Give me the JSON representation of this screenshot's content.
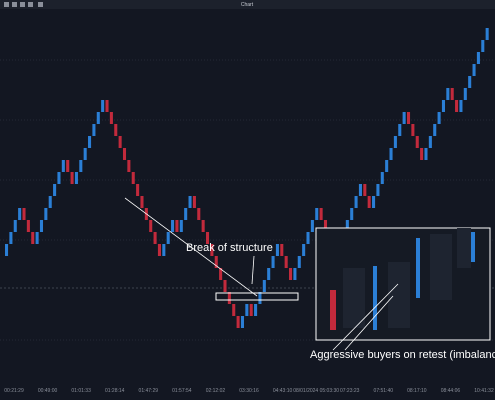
{
  "window": {
    "title": "Chart"
  },
  "chart_data": {
    "type": "candlestick",
    "open": [
      12,
      13,
      14,
      15,
      16,
      15,
      14,
      13,
      14,
      15,
      16,
      17,
      18,
      19,
      20,
      19,
      18,
      19,
      20,
      21,
      22,
      23,
      24,
      25,
      24,
      23,
      22,
      21,
      20,
      19,
      18,
      17,
      16,
      15,
      14,
      13,
      12,
      13,
      14,
      15,
      14,
      15,
      16,
      17,
      16,
      15,
      14,
      13,
      12,
      11,
      10,
      9,
      8,
      7,
      6,
      7,
      8,
      7,
      8,
      9,
      10,
      11,
      12,
      13,
      12,
      11,
      10,
      11,
      12,
      13,
      14,
      15,
      16,
      15,
      14,
      13,
      12,
      13,
      14,
      15,
      16,
      17,
      18,
      17,
      16,
      17,
      18,
      19,
      20,
      21,
      22,
      23,
      24,
      23,
      22,
      21,
      20,
      21,
      22,
      23,
      24,
      25,
      26,
      25,
      24,
      25,
      26,
      27,
      28,
      29,
      30
    ],
    "close": [
      13,
      14,
      15,
      16,
      15,
      14,
      13,
      14,
      15,
      16,
      17,
      18,
      19,
      20,
      19,
      18,
      19,
      20,
      21,
      22,
      23,
      24,
      25,
      24,
      23,
      22,
      21,
      20,
      19,
      18,
      17,
      16,
      15,
      14,
      13,
      12,
      13,
      14,
      15,
      14,
      15,
      16,
      17,
      16,
      15,
      14,
      13,
      12,
      11,
      10,
      9,
      8,
      7,
      6,
      7,
      8,
      7,
      8,
      9,
      10,
      11,
      12,
      13,
      12,
      11,
      10,
      11,
      12,
      13,
      14,
      15,
      16,
      15,
      14,
      13,
      12,
      13,
      14,
      15,
      16,
      17,
      18,
      17,
      16,
      17,
      18,
      19,
      20,
      21,
      22,
      23,
      24,
      23,
      22,
      21,
      20,
      21,
      22,
      23,
      24,
      25,
      26,
      25,
      24,
      25,
      26,
      27,
      28,
      29,
      30,
      31
    ],
    "up_color": "#2b7fd6",
    "down_color": "#c22a3c",
    "x_labels": [
      "00:21:29",
      "00:49:00",
      "01:01:33",
      "01:28:14",
      "01:47:29",
      "01:57:54",
      "02:12:02",
      "03:30:16",
      "04:43:10",
      "08/01/2024 05:03:30",
      "07:23:23",
      "07:51:40",
      "08:17:10",
      "08:44:06",
      "10:41:32"
    ]
  },
  "annotations": {
    "break": "Break of structure",
    "retest": "Aggressive buyers on retest (imbalance)"
  }
}
